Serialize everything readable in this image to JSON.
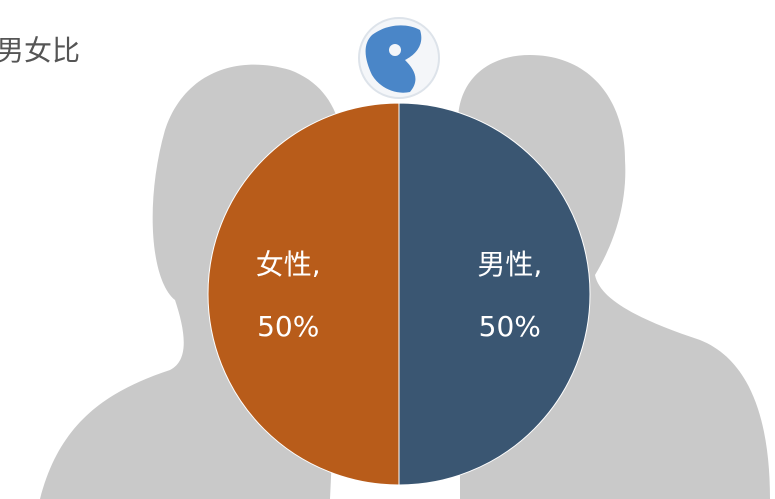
{
  "chart_data": {
    "type": "pie",
    "title": "男女比",
    "categories": [
      "男性,",
      "女性,"
    ],
    "values": [
      50,
      50
    ],
    "value_labels": [
      "50%",
      "50%"
    ],
    "colors": [
      "#3a5672",
      "#b85c1a"
    ]
  }
}
